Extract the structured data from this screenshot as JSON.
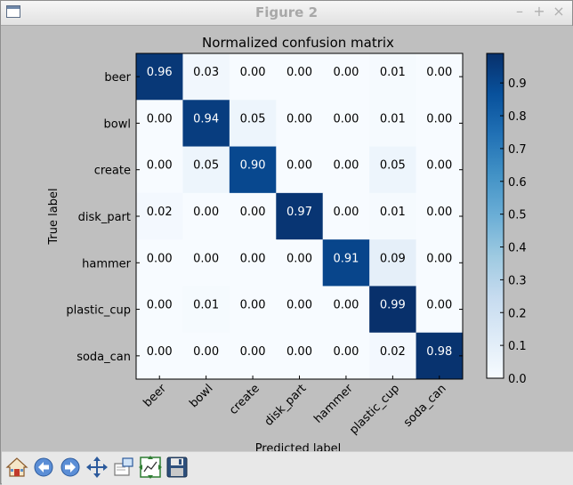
{
  "window": {
    "title": "Figure 2"
  },
  "toolbar": {
    "buttons": [
      {
        "name": "home-button",
        "icon": "home-icon"
      },
      {
        "name": "back-button",
        "icon": "back-arrow-icon"
      },
      {
        "name": "forward-button",
        "icon": "forward-arrow-icon"
      },
      {
        "name": "pan-button",
        "icon": "pan-move-icon"
      },
      {
        "name": "zoom-button",
        "icon": "zoom-rect-icon"
      },
      {
        "name": "subplots-button",
        "icon": "subplots-config-icon"
      },
      {
        "name": "save-button",
        "icon": "floppy-disk-icon"
      }
    ]
  },
  "chart_data": {
    "type": "heatmap",
    "title": "Normalized confusion matrix",
    "xlabel": "Predicted label",
    "ylabel": "True label",
    "row_labels": [
      "beer",
      "bowl",
      "create",
      "disk_part",
      "hammer",
      "plastic_cup",
      "soda_can"
    ],
    "col_labels": [
      "beer",
      "bowl",
      "create",
      "disk_part",
      "hammer",
      "plastic_cup",
      "soda_can"
    ],
    "values": [
      [
        0.96,
        0.03,
        0.0,
        0.0,
        0.0,
        0.01,
        0.0
      ],
      [
        0.0,
        0.94,
        0.05,
        0.0,
        0.0,
        0.01,
        0.0
      ],
      [
        0.0,
        0.05,
        0.9,
        0.0,
        0.0,
        0.05,
        0.0
      ],
      [
        0.02,
        0.0,
        0.0,
        0.97,
        0.0,
        0.01,
        0.0
      ],
      [
        0.0,
        0.0,
        0.0,
        0.0,
        0.91,
        0.09,
        0.0
      ],
      [
        0.0,
        0.01,
        0.0,
        0.0,
        0.0,
        0.99,
        0.0
      ],
      [
        0.0,
        0.0,
        0.0,
        0.0,
        0.0,
        0.02,
        0.98
      ]
    ],
    "colormap": "Blues",
    "colorbar": {
      "ticks": [
        0.0,
        0.1,
        0.2,
        0.3,
        0.4,
        0.5,
        0.6,
        0.7,
        0.8,
        0.9
      ],
      "tick_labels": [
        "0.0",
        "0.1",
        "0.2",
        "0.3",
        "0.4",
        "0.5",
        "0.6",
        "0.7",
        "0.8",
        "0.9"
      ],
      "range": [
        0.0,
        0.99
      ]
    },
    "grid": false
  }
}
